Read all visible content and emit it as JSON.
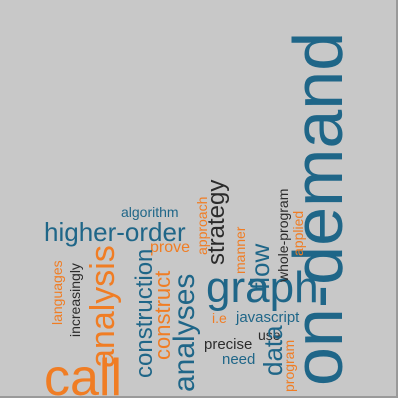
{
  "words": {
    "on_demand": "on-demand",
    "call": "call",
    "graph": "graph",
    "analysis": "analysis",
    "analyses": "analyses",
    "higher_order": "higher-order",
    "construction": "construction",
    "construct": "construct",
    "strategy": "strategy",
    "flow": "flow",
    "data": "data",
    "algorithm": "algorithm",
    "approach": "approach",
    "prove": "prove",
    "whole_program": "whole-program",
    "applied": "applied",
    "manner": "manner",
    "languages": "languages",
    "increasingly": "increasingly",
    "i_e": "i.e",
    "javascript": "javascript",
    "use": "use",
    "precise": "precise",
    "need": "need",
    "program": "program"
  },
  "colors": {
    "background": "#c8c8c8",
    "blue": "#1f6688",
    "orange": "#f07d24",
    "dark": "#2b2b2b"
  }
}
